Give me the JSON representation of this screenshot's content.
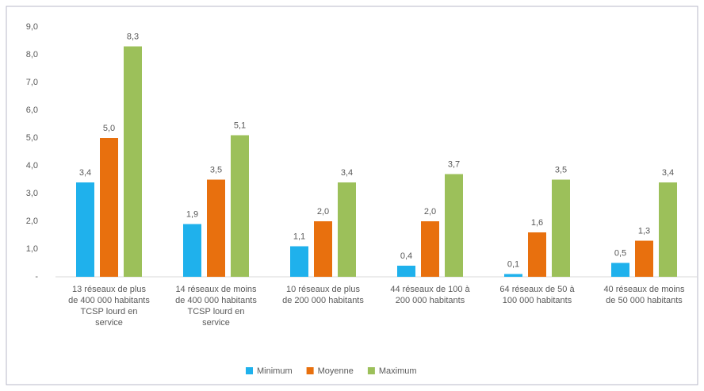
{
  "chart_data": {
    "type": "bar",
    "categories": [
      "13 réseaux de plus de 400 000 habitants TCSP lourd en service",
      "14 réseaux de moins de 400 000 habitants TCSP lourd en service",
      "10 réseaux de plus de 200 000 habitants",
      "44 réseaux de 100 à 200 000 habitants",
      "64 réseaux de 50 à 100 000 habitants",
      "40 réseaux de moins de 50 000 habitants"
    ],
    "series": [
      {
        "name": "Minimum",
        "color": "#1fb1ec",
        "values": [
          3.4,
          1.9,
          1.1,
          0.4,
          0.1,
          0.5
        ],
        "value_labels": [
          "3,4",
          "1,9",
          "1,1",
          "0,4",
          "0,1",
          "0,5"
        ]
      },
      {
        "name": "Moyenne",
        "color": "#e8700e",
        "values": [
          5.0,
          3.5,
          2.0,
          2.0,
          1.6,
          1.3
        ],
        "value_labels": [
          "5,0",
          "3,5",
          "2,0",
          "2,0",
          "1,6",
          "1,3"
        ]
      },
      {
        "name": "Maximum",
        "color": "#9cc05a",
        "values": [
          8.3,
          5.1,
          3.4,
          3.7,
          3.5,
          3.4
        ],
        "value_labels": [
          "8,3",
          "5,1",
          "3,4",
          "3,7",
          "3,5",
          "3,4"
        ]
      }
    ],
    "ylim": [
      0,
      9
    ],
    "yticks": [
      {
        "value": 0,
        "label": "-"
      },
      {
        "value": 1,
        "label": "1,0"
      },
      {
        "value": 2,
        "label": "2,0"
      },
      {
        "value": 3,
        "label": "3,0"
      },
      {
        "value": 4,
        "label": "4,0"
      },
      {
        "value": 5,
        "label": "5,0"
      },
      {
        "value": 6,
        "label": "6,0"
      },
      {
        "value": 7,
        "label": "7,0"
      },
      {
        "value": 8,
        "label": "8,0"
      },
      {
        "value": 9,
        "label": "9,0"
      }
    ],
    "legend": "bottom"
  }
}
